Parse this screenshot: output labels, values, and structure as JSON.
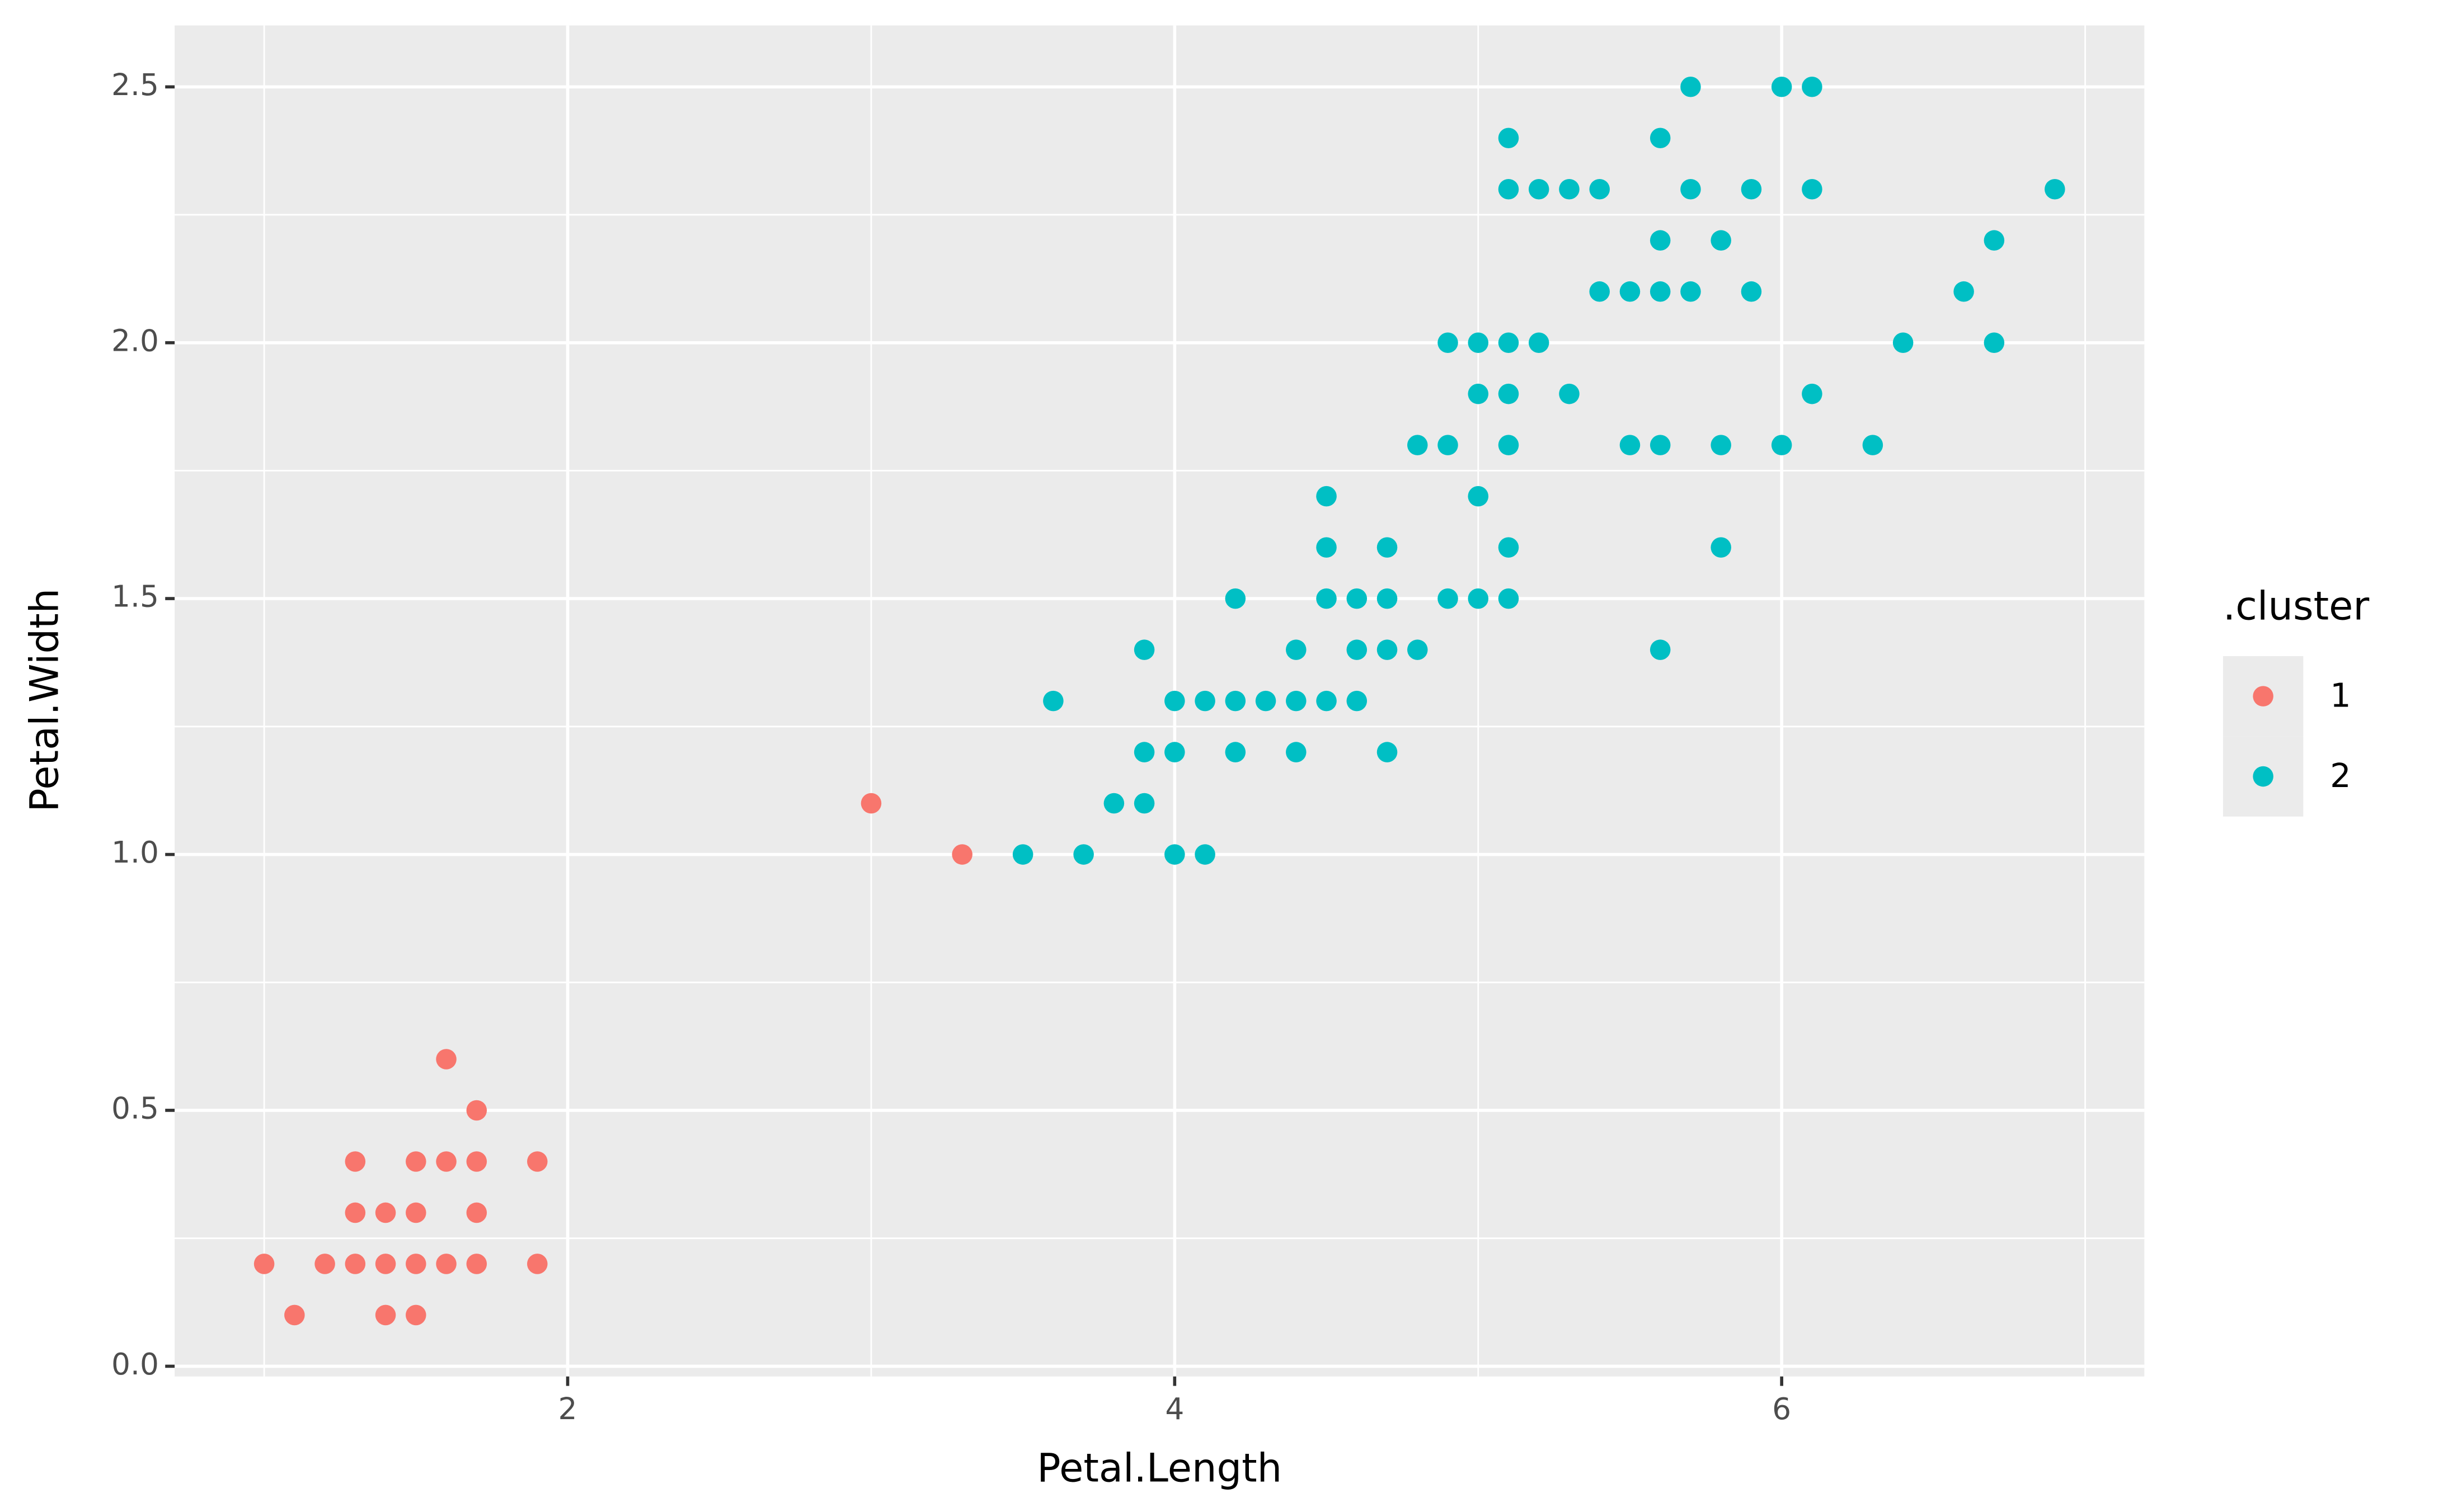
{
  "chart_data": {
    "type": "scatter",
    "x_label": "Petal.Length",
    "y_label": "Petal.Width",
    "legend_title": ".cluster",
    "legend_position": "right",
    "grid": true,
    "xlim": [
      0.705,
      7.195
    ],
    "ylim": [
      -0.02,
      2.62
    ],
    "xticks": [
      2,
      4,
      6
    ],
    "yticks": [
      {
        "value": 0,
        "label": "0.0"
      },
      0.5,
      {
        "value": 1,
        "label": "1.0"
      },
      1.5,
      {
        "value": 2,
        "label": "2.0"
      },
      2.5
    ],
    "series": [
      {
        "name": "1",
        "color": "#F8766D",
        "x": [
          1.0,
          1.1,
          1.2,
          1.3,
          1.3,
          1.3,
          1.4,
          1.4,
          1.4,
          1.5,
          1.5,
          1.5,
          1.5,
          1.6,
          1.6,
          1.6,
          1.7,
          1.7,
          1.7,
          1.7,
          1.9,
          1.9,
          3.0,
          3.3
        ],
        "values": [
          0.2,
          0.1,
          0.2,
          0.2,
          0.3,
          0.4,
          0.1,
          0.2,
          0.3,
          0.1,
          0.2,
          0.3,
          0.4,
          0.2,
          0.4,
          0.6,
          0.2,
          0.3,
          0.4,
          0.5,
          0.2,
          0.4,
          1.1,
          1.0
        ]
      },
      {
        "name": "2",
        "color": "#00BFC4",
        "x": [
          3.5,
          3.7,
          4.0,
          4.1,
          3.8,
          3.9,
          3.9,
          4.0,
          4.2,
          4.4,
          4.7,
          3.6,
          4.0,
          4.1,
          4.2,
          4.3,
          4.4,
          4.5,
          4.6,
          3.9,
          4.4,
          4.6,
          4.7,
          4.8,
          5.6,
          4.2,
          4.5,
          4.6,
          4.7,
          4.9,
          5.0,
          5.1,
          4.5,
          4.7,
          5.1,
          5.8,
          4.5,
          5.0,
          4.8,
          4.9,
          5.1,
          5.5,
          5.6,
          5.8,
          6.0,
          6.3,
          5.0,
          5.1,
          5.3,
          6.1,
          4.9,
          5.0,
          5.1,
          5.2,
          6.4,
          6.7,
          5.4,
          5.5,
          5.6,
          5.7,
          5.9,
          6.6,
          5.6,
          5.8,
          6.7,
          5.1,
          5.2,
          5.3,
          5.4,
          5.7,
          5.9,
          6.1,
          6.9,
          5.1,
          5.6,
          5.7,
          6.0,
          6.1
        ],
        "values": [
          1.0,
          1.0,
          1.0,
          1.0,
          1.1,
          1.1,
          1.2,
          1.2,
          1.2,
          1.2,
          1.2,
          1.3,
          1.3,
          1.3,
          1.3,
          1.3,
          1.3,
          1.3,
          1.3,
          1.4,
          1.4,
          1.4,
          1.4,
          1.4,
          1.4,
          1.5,
          1.5,
          1.5,
          1.5,
          1.5,
          1.5,
          1.5,
          1.6,
          1.6,
          1.6,
          1.6,
          1.7,
          1.7,
          1.8,
          1.8,
          1.8,
          1.8,
          1.8,
          1.8,
          1.8,
          1.8,
          1.9,
          1.9,
          1.9,
          1.9,
          2.0,
          2.0,
          2.0,
          2.0,
          2.0,
          2.0,
          2.1,
          2.1,
          2.1,
          2.1,
          2.1,
          2.1,
          2.2,
          2.2,
          2.2,
          2.3,
          2.3,
          2.3,
          2.3,
          2.3,
          2.3,
          2.3,
          2.3,
          2.4,
          2.4,
          2.5,
          2.5,
          2.5
        ]
      }
    ]
  }
}
